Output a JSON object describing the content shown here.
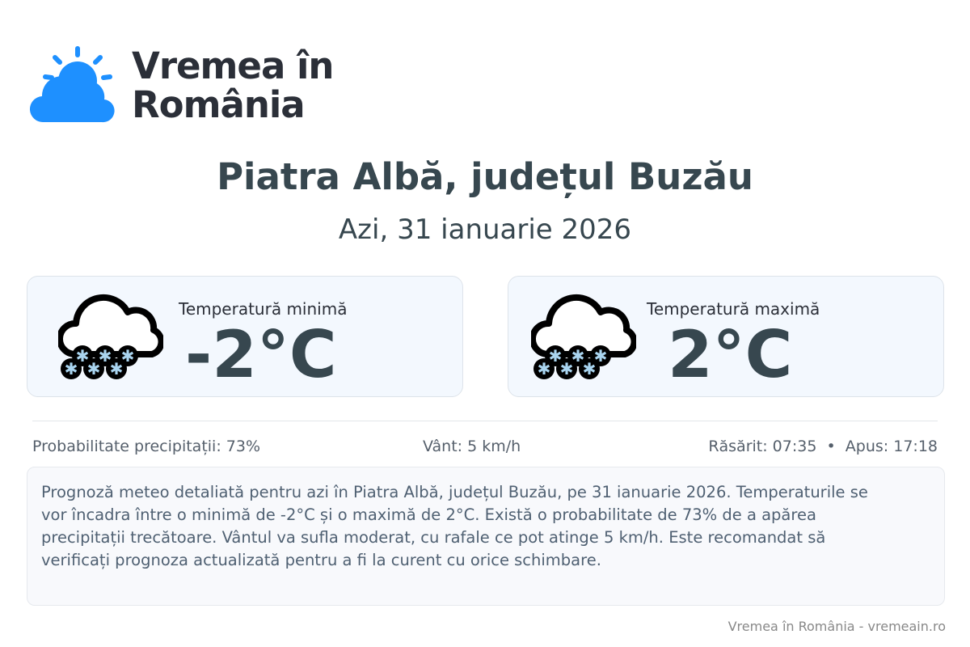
{
  "brand": {
    "line1": "Vremea în",
    "line2": "România",
    "accent": "#1e90ff"
  },
  "location": "Piatra Albă, județul Buzău",
  "date": "Azi, 31 ianuarie 2026",
  "min": {
    "label": "Temperatură minimă",
    "value": "-2°C",
    "icon": "snow-cloud-icon"
  },
  "max": {
    "label": "Temperatură maximă",
    "value": "2°C",
    "icon": "snow-cloud-icon"
  },
  "info": {
    "precip": "Probabilitate precipitații: 73%",
    "wind": "Vânt: 5 km/h",
    "sun": "Răsărit: 07:35  •  Apus: 17:18"
  },
  "description": "Prognoză meteo detaliată pentru azi în Piatra Albă, județul Buzău, pe 31 ianuarie 2026. Temperaturile se vor încadra între o minimă de -2°C și o maximă de 2°C. Există o probabilitate de 73% de a apărea precipitații trecătoare. Vântul va sufla moderat, cu rafale ce pot atinge 5 km/h. Este recomandat să verificați prognoza actualizată pentru a fi la curent cu orice schimbare.",
  "footer": "Vremea în România - vremeain.ro"
}
